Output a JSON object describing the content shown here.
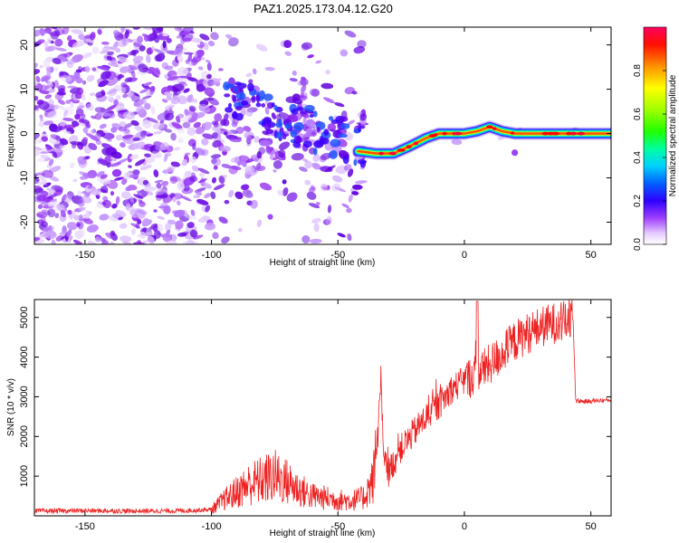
{
  "figure": {
    "title": "PAZ1.2025.173.04.12.G20"
  },
  "chart_data": [
    {
      "type": "heatmap",
      "xlabel": "Height of straight line (km)",
      "ylabel": "Frequency (Hz)",
      "xlim": [
        -170,
        58
      ],
      "ylim": [
        -25,
        24
      ],
      "xticks": [
        -150,
        -100,
        -50,
        0,
        50
      ],
      "yticks": [
        -20,
        -10,
        0,
        10,
        20
      ],
      "colorbar": {
        "label": "Normalized spectral amplitude",
        "range": [
          0,
          1
        ],
        "ticks": [
          0.0,
          0.2,
          0.4,
          0.6,
          0.8
        ],
        "colormap": [
          "#ffffff",
          "#d9b8ff",
          "#8a2be2",
          "#3a00ff",
          "#0080ff",
          "#00e0ff",
          "#00ff40",
          "#a0ff00",
          "#ffff00",
          "#ff8000",
          "#ff0000",
          "#ff0080"
        ]
      },
      "main_tone": {
        "description_points_x": [
          -42,
          -35,
          -28,
          -22,
          -15,
          -10,
          -5,
          0,
          5,
          10,
          15,
          20,
          30,
          40,
          58
        ],
        "description_points_y": [
          -4,
          -4.5,
          -4.5,
          -3,
          -1,
          0,
          0,
          0,
          0.5,
          1.5,
          0.5,
          0,
          0,
          0,
          0
        ]
      }
    },
    {
      "type": "line",
      "xlabel": "Height of straight line (km)",
      "ylabel": "SNR (10 * v/v)",
      "xlim": [
        -170,
        58
      ],
      "ylim": [
        0,
        5450
      ],
      "xticks": [
        -150,
        -100,
        -50,
        0,
        50
      ],
      "yticks": [
        1000,
        2000,
        3000,
        4000,
        5000
      ],
      "series": [
        {
          "color": "#ee2222",
          "x": [
            -170,
            -150,
            -130,
            -110,
            -100,
            -95,
            -90,
            -85,
            -80,
            -75,
            -70,
            -65,
            -60,
            -55,
            -50,
            -45,
            -40,
            -36,
            -34,
            -33,
            -32,
            -30,
            -25,
            -20,
            -15,
            -10,
            -5,
            0,
            5,
            10,
            15,
            20,
            25,
            30,
            35,
            40,
            43,
            44,
            48,
            52,
            58
          ],
          "y": [
            120,
            130,
            120,
            130,
            160,
            400,
            600,
            800,
            900,
            1000,
            850,
            650,
            500,
            450,
            400,
            380,
            450,
            900,
            2200,
            3500,
            1400,
            1100,
            1700,
            2100,
            2500,
            2800,
            3200,
            3400,
            3600,
            3800,
            4100,
            4400,
            4600,
            4750,
            4850,
            4900,
            4950,
            2900,
            2880,
            2900,
            2920
          ]
        }
      ]
    }
  ]
}
